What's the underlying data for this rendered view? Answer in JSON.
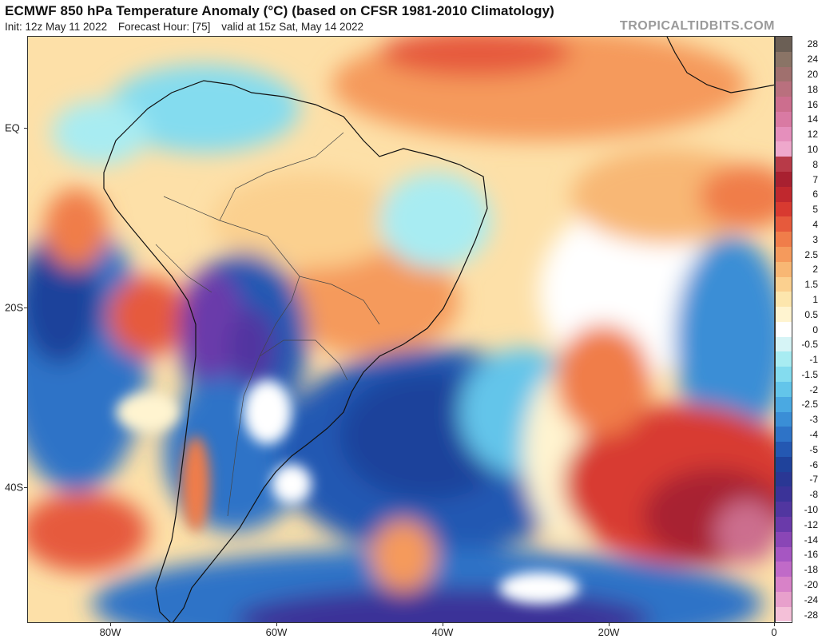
{
  "header": {
    "title": "ECMWF 850 hPa Temperature Anomaly (°C) (based on CFSR 1981-2010 Climatology)",
    "init": "Init: 12z May 11 2022",
    "forecast_hour": "Forecast Hour: [75]",
    "valid": "valid at 15z Sat, May 14 2022",
    "site": "TROPICALTIDBITS.COM"
  },
  "axes": {
    "lat_labels": [
      "EQ",
      "20S",
      "40S"
    ],
    "lon_labels": [
      "80W",
      "60W",
      "40W",
      "20W",
      "0"
    ]
  },
  "colorbar": {
    "labels": [
      "28",
      "24",
      "20",
      "18",
      "16",
      "14",
      "12",
      "10",
      "8",
      "7",
      "6",
      "5",
      "4",
      "3",
      "2.5",
      "2",
      "1.5",
      "1",
      "0.5",
      "0",
      "-0.5",
      "-1",
      "-1.5",
      "-2",
      "-2.5",
      "-3",
      "-4",
      "-5",
      "-6",
      "-7",
      "-8",
      "-10",
      "-12",
      "-14",
      "-16",
      "-18",
      "-20",
      "-24",
      "-28"
    ],
    "colors": [
      "#6b5f55",
      "#8a7466",
      "#a0706e",
      "#b9707e",
      "#cc6e8e",
      "#d97aa3",
      "#e58fbc",
      "#efa8cc",
      "#b83a48",
      "#a82030",
      "#c0282e",
      "#d83a30",
      "#e65a3c",
      "#f07d4a",
      "#f59a5c",
      "#f8b774",
      "#fbd08f",
      "#fde6ad",
      "#fff4d0",
      "#ffffff",
      "#d6f4f6",
      "#a8ecf2",
      "#84dcef",
      "#63c5ea",
      "#4aa9e2",
      "#3a8ed6",
      "#2e73c7",
      "#2458b2",
      "#1f429b",
      "#2a3794",
      "#3b3398",
      "#5136a0",
      "#6a3aaa",
      "#8a46b6",
      "#a656c2",
      "#c06ac8",
      "#d882c8",
      "#e8a0cc",
      "#f4c0d8"
    ]
  },
  "map": {
    "background": "#fde0a8",
    "warm_color": "#f59a5c",
    "hot_color": "#d83a30",
    "very_hot_color": "#a02838",
    "cold_color": "#2e73c7",
    "very_cold_color": "#1f429b",
    "purple_color": "#6a3aaa",
    "cyan_color": "#84dcef",
    "white_color": "#ffffff"
  }
}
